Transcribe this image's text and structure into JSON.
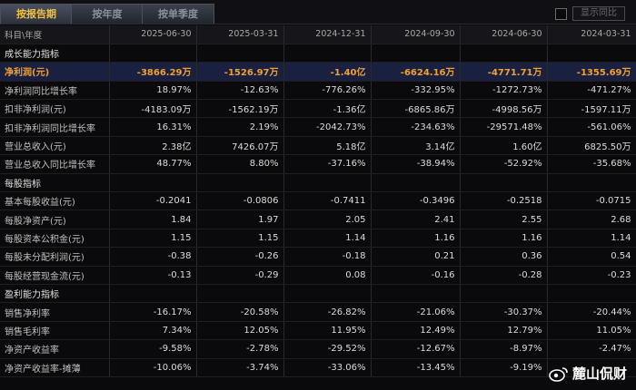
{
  "tabs": [
    {
      "label": "按报告期",
      "active": true
    },
    {
      "label": "按年度",
      "active": false
    },
    {
      "label": "按单季度",
      "active": false
    }
  ],
  "yoy_toggle_label": "显示同比",
  "header": {
    "first": "科目\\年度",
    "periods": [
      "2025-06-30",
      "2025-03-31",
      "2024-12-31",
      "2024-09-30",
      "2024-06-30",
      "2024-03-31"
    ]
  },
  "rows": [
    {
      "label": "成长能力指标",
      "section": true,
      "values": [
        "",
        "",
        "",
        "",
        "",
        ""
      ]
    },
    {
      "label": "净利润(元)",
      "highlight": true,
      "values": [
        "-3866.29万",
        "-1526.97万",
        "-1.40亿",
        "-6624.16万",
        "-4771.71万",
        "-1355.69万"
      ]
    },
    {
      "label": "净利润同比增长率",
      "values": [
        "18.97%",
        "-12.63%",
        "-776.26%",
        "-332.95%",
        "-1272.73%",
        "-471.27%"
      ]
    },
    {
      "label": "扣非净利润(元)",
      "values": [
        "-4183.09万",
        "-1562.19万",
        "-1.36亿",
        "-6865.86万",
        "-4998.56万",
        "-1597.11万"
      ]
    },
    {
      "label": "扣非净利润同比增长率",
      "values": [
        "16.31%",
        "2.19%",
        "-2042.73%",
        "-234.63%",
        "-29571.48%",
        "-561.06%"
      ]
    },
    {
      "label": "营业总收入(元)",
      "values": [
        "2.38亿",
        "7426.07万",
        "5.18亿",
        "3.14亿",
        "1.60亿",
        "6825.50万"
      ]
    },
    {
      "label": "营业总收入同比增长率",
      "values": [
        "48.77%",
        "8.80%",
        "-37.16%",
        "-38.94%",
        "-52.92%",
        "-35.68%"
      ]
    },
    {
      "label": "每股指标",
      "section": true,
      "values": [
        "",
        "",
        "",
        "",
        "",
        ""
      ]
    },
    {
      "label": "基本每股收益(元)",
      "values": [
        "-0.2041",
        "-0.0806",
        "-0.7411",
        "-0.3496",
        "-0.2518",
        "-0.0715"
      ]
    },
    {
      "label": "每股净资产(元)",
      "values": [
        "1.84",
        "1.97",
        "2.05",
        "2.41",
        "2.55",
        "2.68"
      ]
    },
    {
      "label": "每股资本公积金(元)",
      "values": [
        "1.15",
        "1.15",
        "1.14",
        "1.16",
        "1.16",
        "1.14"
      ]
    },
    {
      "label": "每股未分配利润(元)",
      "values": [
        "-0.38",
        "-0.26",
        "-0.18",
        "0.21",
        "0.36",
        "0.54"
      ]
    },
    {
      "label": "每股经营现金流(元)",
      "values": [
        "-0.13",
        "-0.29",
        "0.08",
        "-0.16",
        "-0.28",
        "-0.23"
      ]
    },
    {
      "label": "盈利能力指标",
      "section": true,
      "values": [
        "",
        "",
        "",
        "",
        "",
        ""
      ]
    },
    {
      "label": "销售净利率",
      "values": [
        "-16.17%",
        "-20.58%",
        "-26.82%",
        "-21.06%",
        "-30.37%",
        "-20.44%"
      ]
    },
    {
      "label": "销售毛利率",
      "values": [
        "7.34%",
        "12.05%",
        "11.95%",
        "12.49%",
        "12.79%",
        "11.05%"
      ]
    },
    {
      "label": "净资产收益率",
      "values": [
        "-9.58%",
        "-2.78%",
        "-29.52%",
        "-12.67%",
        "-8.97%",
        "-2.47%"
      ]
    },
    {
      "label": "净资产收益率-摊薄",
      "values": [
        "-10.06%",
        "-3.74%",
        "-33.06%",
        "-13.45%",
        "-9.19%",
        ""
      ]
    }
  ],
  "watermark": "麓山侃财",
  "colors": {
    "highlight_text": "#f0a030",
    "active_tab_text": "#f0c040",
    "highlight_row_bg": "#1a2140"
  }
}
